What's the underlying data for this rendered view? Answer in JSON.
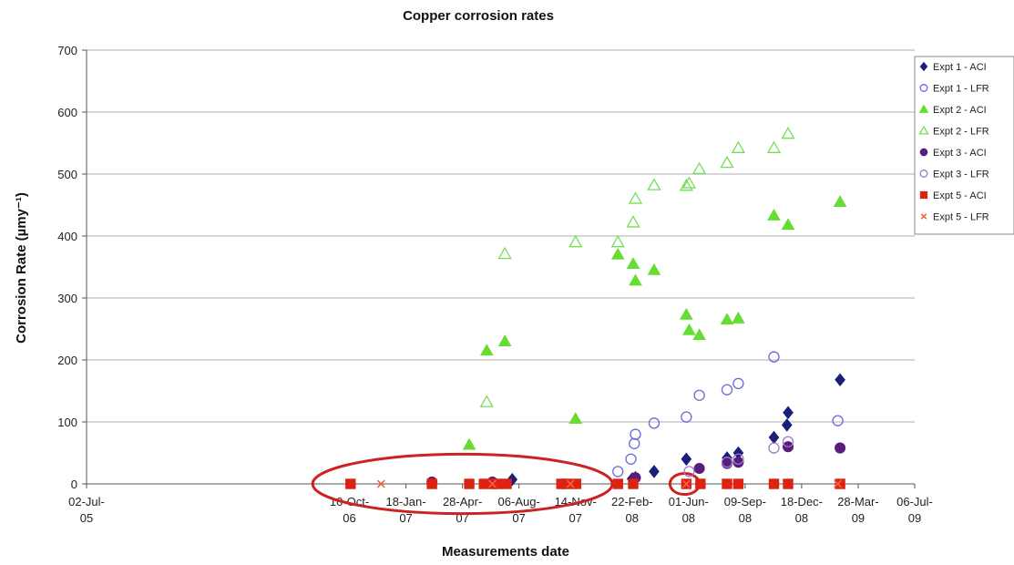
{
  "chart_data": {
    "type": "scatter",
    "title": "Copper corrosion rates",
    "xlabel": "Measurements date",
    "ylabel": "Corrosion Rate (µmy⁻¹)",
    "ylim": [
      0,
      700
    ],
    "yticks": [
      0,
      100,
      200,
      300,
      400,
      500,
      600,
      700
    ],
    "xlim": [
      "2005-07-02",
      "2009-07-06"
    ],
    "xticks": [
      {
        "date": "2005-07-02",
        "line1": "02-Jul-",
        "line2": "05"
      },
      {
        "date": "2006-10-10",
        "line1": "10-Oct-",
        "line2": "06"
      },
      {
        "date": "2007-01-18",
        "line1": "18-Jan-",
        "line2": "07"
      },
      {
        "date": "2007-04-28",
        "line1": "28-Apr-",
        "line2": "07"
      },
      {
        "date": "2007-08-06",
        "line1": "06-Aug-",
        "line2": "07"
      },
      {
        "date": "2007-11-14",
        "line1": "14-Nov-",
        "line2": "07"
      },
      {
        "date": "2008-02-22",
        "line1": "22-Feb-",
        "line2": "08"
      },
      {
        "date": "2008-06-01",
        "line1": "01-Jun-",
        "line2": "08"
      },
      {
        "date": "2008-09-09",
        "line1": "09-Sep-",
        "line2": "08"
      },
      {
        "date": "2008-12-18",
        "line1": "18-Dec-",
        "line2": "08"
      },
      {
        "date": "2009-03-28",
        "line1": "28-Mar-",
        "line2": "09"
      },
      {
        "date": "2009-07-06",
        "line1": "06-Jul-",
        "line2": "09"
      }
    ],
    "gridlines": true,
    "legend_position": "right",
    "series": [
      {
        "name": "Expt 1 - ACI",
        "marker": "diamond",
        "filled": true,
        "color": "#1a1f7a",
        "points": [
          [
            "2007-07-25",
            7
          ],
          [
            "2008-02-22",
            8
          ],
          [
            "2008-02-28",
            10
          ],
          [
            "2008-04-01",
            20
          ],
          [
            "2008-05-28",
            40
          ],
          [
            "2008-08-08",
            42
          ],
          [
            "2008-08-28",
            50
          ],
          [
            "2008-10-30",
            75
          ],
          [
            "2008-11-22",
            95
          ],
          [
            "2008-11-24",
            115
          ],
          [
            "2009-02-24",
            168
          ]
        ]
      },
      {
        "name": "Expt 1 - LFR",
        "marker": "circle",
        "filled": false,
        "color": "#6a6ad8",
        "points": [
          [
            "2008-01-28",
            20
          ],
          [
            "2008-02-20",
            40
          ],
          [
            "2008-02-26",
            65
          ],
          [
            "2008-02-28",
            80
          ],
          [
            "2008-04-01",
            98
          ],
          [
            "2008-05-28",
            108
          ],
          [
            "2008-06-20",
            143
          ],
          [
            "2008-08-08",
            152
          ],
          [
            "2008-08-28",
            162
          ],
          [
            "2008-10-30",
            205
          ],
          [
            "2009-02-20",
            102
          ]
        ]
      },
      {
        "name": "Expt 2 - ACI",
        "marker": "triangle",
        "filled": true,
        "color": "#66dd33",
        "points": [
          [
            "2007-05-10",
            63
          ],
          [
            "2007-06-10",
            215
          ],
          [
            "2007-07-12",
            230
          ],
          [
            "2007-11-14",
            105
          ],
          [
            "2008-01-28",
            370
          ],
          [
            "2008-02-24",
            355
          ],
          [
            "2008-02-28",
            328
          ],
          [
            "2008-04-01",
            345
          ],
          [
            "2008-05-28",
            273
          ],
          [
            "2008-06-02",
            248
          ],
          [
            "2008-06-20",
            240
          ],
          [
            "2008-08-08",
            265
          ],
          [
            "2008-08-28",
            267
          ],
          [
            "2008-10-30",
            433
          ],
          [
            "2008-11-24",
            418
          ],
          [
            "2009-02-24",
            455
          ]
        ]
      },
      {
        "name": "Expt 2 - LFR",
        "marker": "triangle",
        "filled": false,
        "color": "#77dd55",
        "points": [
          [
            "2007-06-10",
            132
          ],
          [
            "2007-07-12",
            371
          ],
          [
            "2007-11-14",
            390
          ],
          [
            "2008-01-28",
            390
          ],
          [
            "2008-02-24",
            422
          ],
          [
            "2008-02-28",
            460
          ],
          [
            "2008-04-01",
            482
          ],
          [
            "2008-05-28",
            481
          ],
          [
            "2008-06-02",
            485
          ],
          [
            "2008-06-20",
            508
          ],
          [
            "2008-08-08",
            518
          ],
          [
            "2008-08-28",
            542
          ],
          [
            "2008-10-30",
            542
          ],
          [
            "2008-11-24",
            565
          ]
        ]
      },
      {
        "name": "Expt 3 - ACI",
        "marker": "circle",
        "filled": true,
        "color": "#5a1d7a",
        "points": [
          [
            "2007-03-05",
            3
          ],
          [
            "2007-06-20",
            3
          ],
          [
            "2008-02-28",
            10
          ],
          [
            "2008-06-20",
            25
          ],
          [
            "2008-08-08",
            33
          ],
          [
            "2008-08-28",
            35
          ],
          [
            "2008-11-24",
            60
          ],
          [
            "2009-02-24",
            58
          ]
        ]
      },
      {
        "name": "Expt 3 - LFR",
        "marker": "circle",
        "filled": false,
        "color": "#9a7acc",
        "points": [
          [
            "2008-06-02",
            20
          ],
          [
            "2008-08-08",
            35
          ],
          [
            "2008-08-28",
            40
          ],
          [
            "2008-10-30",
            58
          ],
          [
            "2008-11-24",
            68
          ]
        ]
      },
      {
        "name": "Expt 5 - ACI",
        "marker": "square",
        "filled": true,
        "color": "#dd2211",
        "points": [
          [
            "2006-10-12",
            0
          ],
          [
            "2007-03-05",
            0
          ],
          [
            "2007-05-10",
            0
          ],
          [
            "2007-06-05",
            0
          ],
          [
            "2007-06-20",
            0
          ],
          [
            "2007-06-28",
            0
          ],
          [
            "2007-07-15",
            0
          ],
          [
            "2007-10-20",
            0
          ],
          [
            "2007-10-28",
            0
          ],
          [
            "2007-11-15",
            0
          ],
          [
            "2008-01-28",
            0
          ],
          [
            "2008-02-24",
            0
          ],
          [
            "2008-05-28",
            0
          ],
          [
            "2008-06-22",
            0
          ],
          [
            "2008-08-08",
            0
          ],
          [
            "2008-08-28",
            0
          ],
          [
            "2008-10-30",
            0
          ],
          [
            "2008-11-24",
            0
          ],
          [
            "2009-02-24",
            0
          ]
        ]
      },
      {
        "name": "Expt 5 - LFR",
        "marker": "x",
        "filled": false,
        "color": "#ee6644",
        "points": [
          [
            "2006-12-05",
            0
          ],
          [
            "2007-06-20",
            0
          ],
          [
            "2007-11-05",
            0
          ],
          [
            "2008-05-28",
            0
          ],
          [
            "2009-02-20",
            0
          ]
        ]
      }
    ],
    "annotations": {
      "ellipses": [
        {
          "center": [
            "2007-04-28",
            0
          ],
          "rx_days": 265,
          "ry_value": 48,
          "color": "#cc2222"
        },
        {
          "center": [
            "2008-05-25",
            0
          ],
          "rx_days": 26,
          "ry_value": 17,
          "color": "#cc2222"
        }
      ]
    }
  }
}
